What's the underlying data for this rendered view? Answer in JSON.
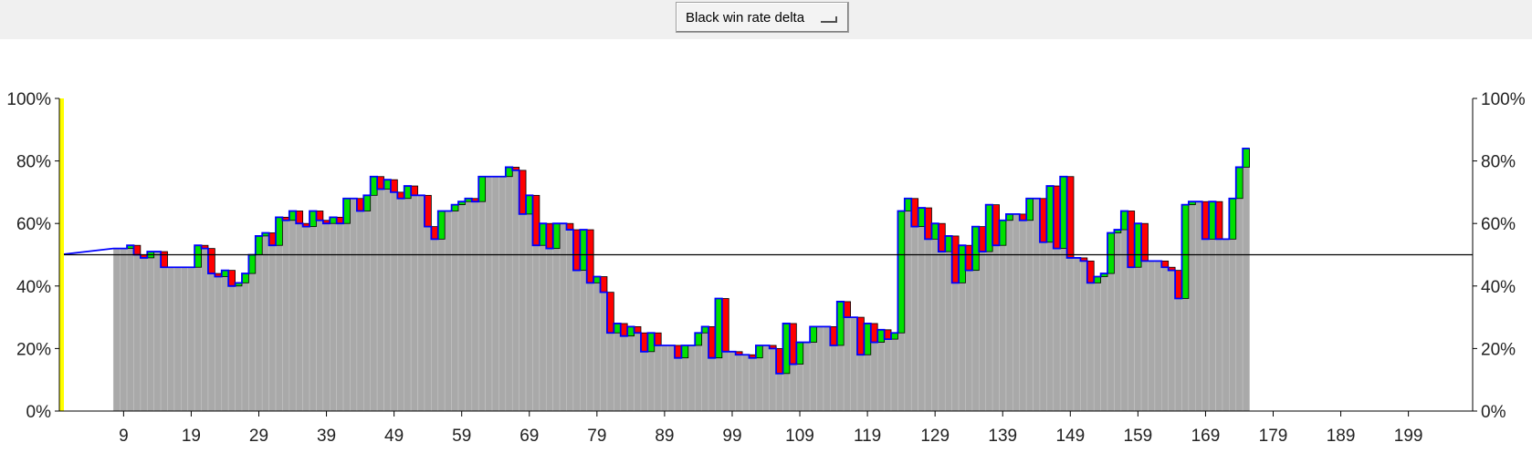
{
  "toolbar": {
    "mode_label": "Black win rate delta"
  },
  "colors": {
    "bar": "#a9a9a9",
    "bar_divider": "#c4c4c4",
    "loss": "#ff0000",
    "gain": "#00e000",
    "line": "#0000ff",
    "baseline": "#000000",
    "marker": "#ffff00"
  },
  "chart_data": {
    "type": "bar",
    "title": "",
    "xlabel": "",
    "ylabel": "",
    "ylim": [
      0,
      100
    ],
    "xlim": [
      0,
      209
    ],
    "baseline": 50,
    "y_ticks": [
      "0%",
      "20%",
      "40%",
      "60%",
      "80%",
      "100%"
    ],
    "y_tick_values": [
      0,
      20,
      40,
      60,
      80,
      100
    ],
    "x_ticks": [
      9,
      19,
      29,
      39,
      49,
      59,
      69,
      79,
      89,
      99,
      109,
      119,
      129,
      139,
      149,
      159,
      169,
      179,
      189,
      199
    ],
    "marker_move": 0,
    "opening_line": {
      "x": [
        0,
        8
      ],
      "y": [
        50,
        52
      ]
    },
    "moves": {
      "start": 8,
      "end": 208
    },
    "values": [
      52,
      52,
      53,
      50,
      49,
      51,
      51,
      46,
      46,
      46,
      46,
      46,
      53,
      52,
      44,
      43,
      45,
      40,
      41,
      44,
      50,
      56,
      57,
      53,
      62,
      61,
      64,
      60,
      59,
      64,
      61,
      60,
      62,
      60,
      68,
      68,
      64,
      69,
      75,
      71,
      74,
      70,
      68,
      72,
      69,
      69,
      59,
      55,
      64,
      64,
      66,
      67,
      68,
      67,
      75,
      75,
      75,
      75,
      78,
      77,
      63,
      69,
      53,
      60,
      52,
      60,
      60,
      58,
      45,
      58,
      41,
      43,
      38,
      25,
      28,
      24,
      27,
      25,
      19,
      25,
      21,
      21,
      21,
      17,
      21,
      21,
      25,
      27,
      17,
      36,
      19,
      19,
      18,
      18,
      17,
      21,
      21,
      20,
      12,
      28,
      15,
      22,
      22,
      27,
      27,
      27,
      21,
      35,
      30,
      30,
      18,
      28,
      22,
      26,
      23,
      25,
      64,
      68,
      59,
      65,
      55,
      60,
      51,
      56,
      41,
      53,
      45,
      59,
      51,
      66,
      53,
      61,
      63,
      63,
      61,
      68,
      68,
      54,
      72,
      52,
      75,
      49,
      49,
      48,
      41,
      43,
      44,
      57,
      58,
      64,
      46,
      60,
      48,
      48,
      48,
      46,
      45,
      36,
      66,
      67,
      67,
      55,
      67,
      55,
      55,
      68,
      78,
      84
    ]
  }
}
